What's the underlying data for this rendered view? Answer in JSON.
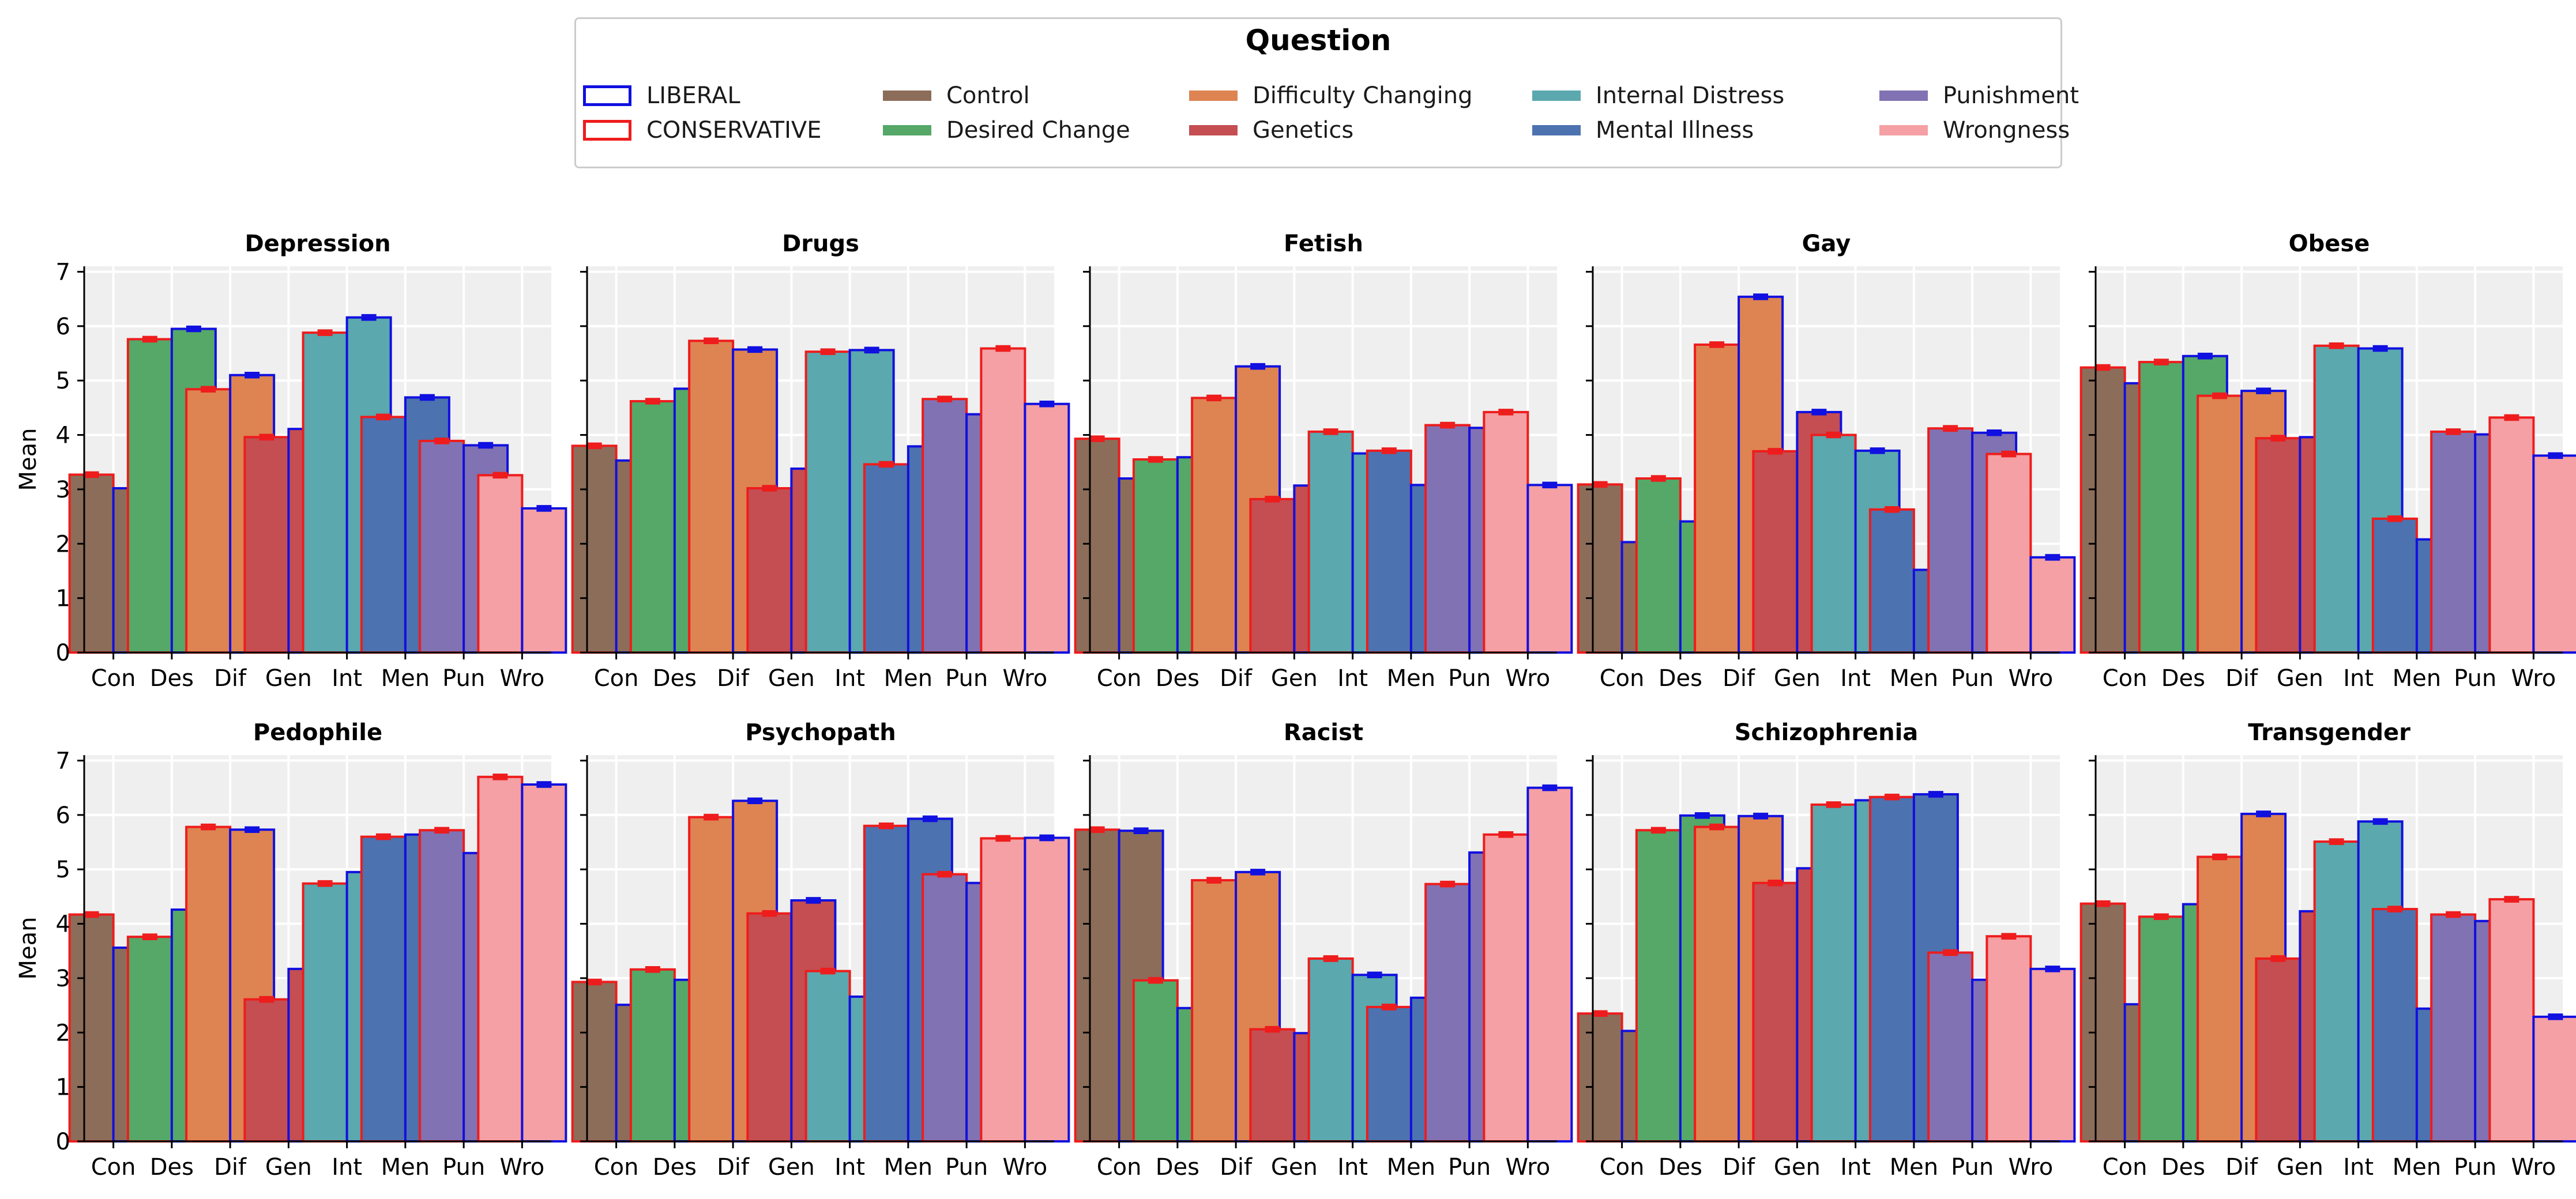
{
  "legend": {
    "title": "Question",
    "items": [
      {
        "label": "LIBERAL",
        "style": "outline",
        "color": "#1010e0"
      },
      {
        "label": "CONSERVATIVE",
        "style": "outline",
        "color": "#ee1c1c"
      },
      {
        "label": "Control",
        "style": "filled",
        "color": "#8c6d5a"
      },
      {
        "label": "Desired Change",
        "style": "filled",
        "color": "#55a868"
      },
      {
        "label": "Difficulty Changing",
        "style": "filled",
        "color": "#dd8452"
      },
      {
        "label": "Genetics",
        "style": "filled",
        "color": "#c44e52"
      },
      {
        "label": "Internal Distress",
        "style": "filled",
        "color": "#5ba8ae"
      },
      {
        "label": "Mental Illness",
        "style": "filled",
        "color": "#4c72b0"
      },
      {
        "label": "Punishment",
        "style": "filled",
        "color": "#8172b3"
      },
      {
        "label": "Wrongness",
        "style": "filled",
        "color": "#f4a0a4"
      }
    ]
  },
  "chart_data": {
    "type": "bar",
    "ylabel": "Mean",
    "ylim": [
      0,
      7.1
    ],
    "yticks": [
      0,
      1,
      2,
      3,
      4,
      5,
      6,
      7
    ],
    "grid": true,
    "legend_position": "top-center",
    "categories": [
      "Con",
      "Des",
      "Dif",
      "Gen",
      "Int",
      "Men",
      "Pun",
      "Wro"
    ],
    "category_colors": [
      "#8c6d5a",
      "#55a868",
      "#dd8452",
      "#c44e52",
      "#5ba8ae",
      "#4c72b0",
      "#8172b3",
      "#f4a0a4"
    ],
    "group_colors": {
      "conservative": "#ee1c1c",
      "liberal": "#1010e0"
    },
    "panels": [
      {
        "title": "Depression",
        "conservative": [
          3.27,
          5.76,
          4.84,
          3.96,
          5.88,
          4.33,
          3.89,
          3.26
        ],
        "liberal": [
          3.02,
          5.95,
          5.1,
          4.11,
          6.16,
          4.69,
          3.81,
          2.65
        ]
      },
      {
        "title": "Drugs",
        "conservative": [
          3.8,
          4.62,
          5.73,
          3.02,
          5.53,
          3.46,
          4.66,
          5.59
        ],
        "liberal": [
          3.53,
          4.85,
          5.57,
          3.38,
          5.56,
          3.79,
          4.38,
          4.57
        ]
      },
      {
        "title": "Fetish",
        "conservative": [
          3.93,
          3.55,
          4.68,
          2.82,
          4.06,
          3.71,
          4.18,
          4.42
        ],
        "liberal": [
          3.2,
          3.59,
          5.26,
          3.07,
          3.66,
          3.08,
          4.13,
          3.08
        ]
      },
      {
        "title": "Gay",
        "conservative": [
          3.09,
          3.2,
          5.66,
          3.7,
          4.0,
          2.63,
          4.12,
          3.65
        ],
        "liberal": [
          2.03,
          2.41,
          6.54,
          4.42,
          3.71,
          1.52,
          4.04,
          1.75
        ]
      },
      {
        "title": "Obese",
        "conservative": [
          5.24,
          5.34,
          4.72,
          3.94,
          5.64,
          2.46,
          4.06,
          4.32
        ],
        "liberal": [
          4.95,
          5.45,
          4.81,
          3.96,
          5.59,
          2.08,
          4.01,
          3.62
        ]
      },
      {
        "title": "Pedophile",
        "conservative": [
          4.17,
          3.76,
          5.78,
          2.61,
          4.74,
          5.6,
          5.72,
          6.7
        ],
        "liberal": [
          3.56,
          4.26,
          5.73,
          3.17,
          4.95,
          5.64,
          5.3,
          6.56
        ]
      },
      {
        "title": "Psychopath",
        "conservative": [
          2.93,
          3.16,
          5.96,
          4.19,
          3.13,
          5.8,
          4.91,
          5.57
        ],
        "liberal": [
          2.51,
          2.97,
          6.26,
          4.43,
          2.66,
          5.93,
          4.75,
          5.58
        ]
      },
      {
        "title": "Racist",
        "conservative": [
          5.73,
          2.96,
          4.8,
          2.06,
          3.36,
          2.47,
          4.73,
          5.64
        ],
        "liberal": [
          5.71,
          2.45,
          4.95,
          1.99,
          3.06,
          2.64,
          5.31,
          6.5
        ]
      },
      {
        "title": "Schizophrenia",
        "conservative": [
          2.35,
          5.72,
          5.78,
          4.75,
          6.19,
          6.33,
          3.47,
          3.77
        ],
        "liberal": [
          2.03,
          5.99,
          5.98,
          5.02,
          6.27,
          6.38,
          2.97,
          3.17
        ]
      },
      {
        "title": "Transgender",
        "conservative": [
          4.37,
          4.13,
          5.23,
          3.36,
          5.51,
          4.27,
          4.17,
          4.45
        ],
        "liberal": [
          2.52,
          4.36,
          6.02,
          4.23,
          5.88,
          2.44,
          4.05,
          2.29
        ]
      }
    ]
  }
}
